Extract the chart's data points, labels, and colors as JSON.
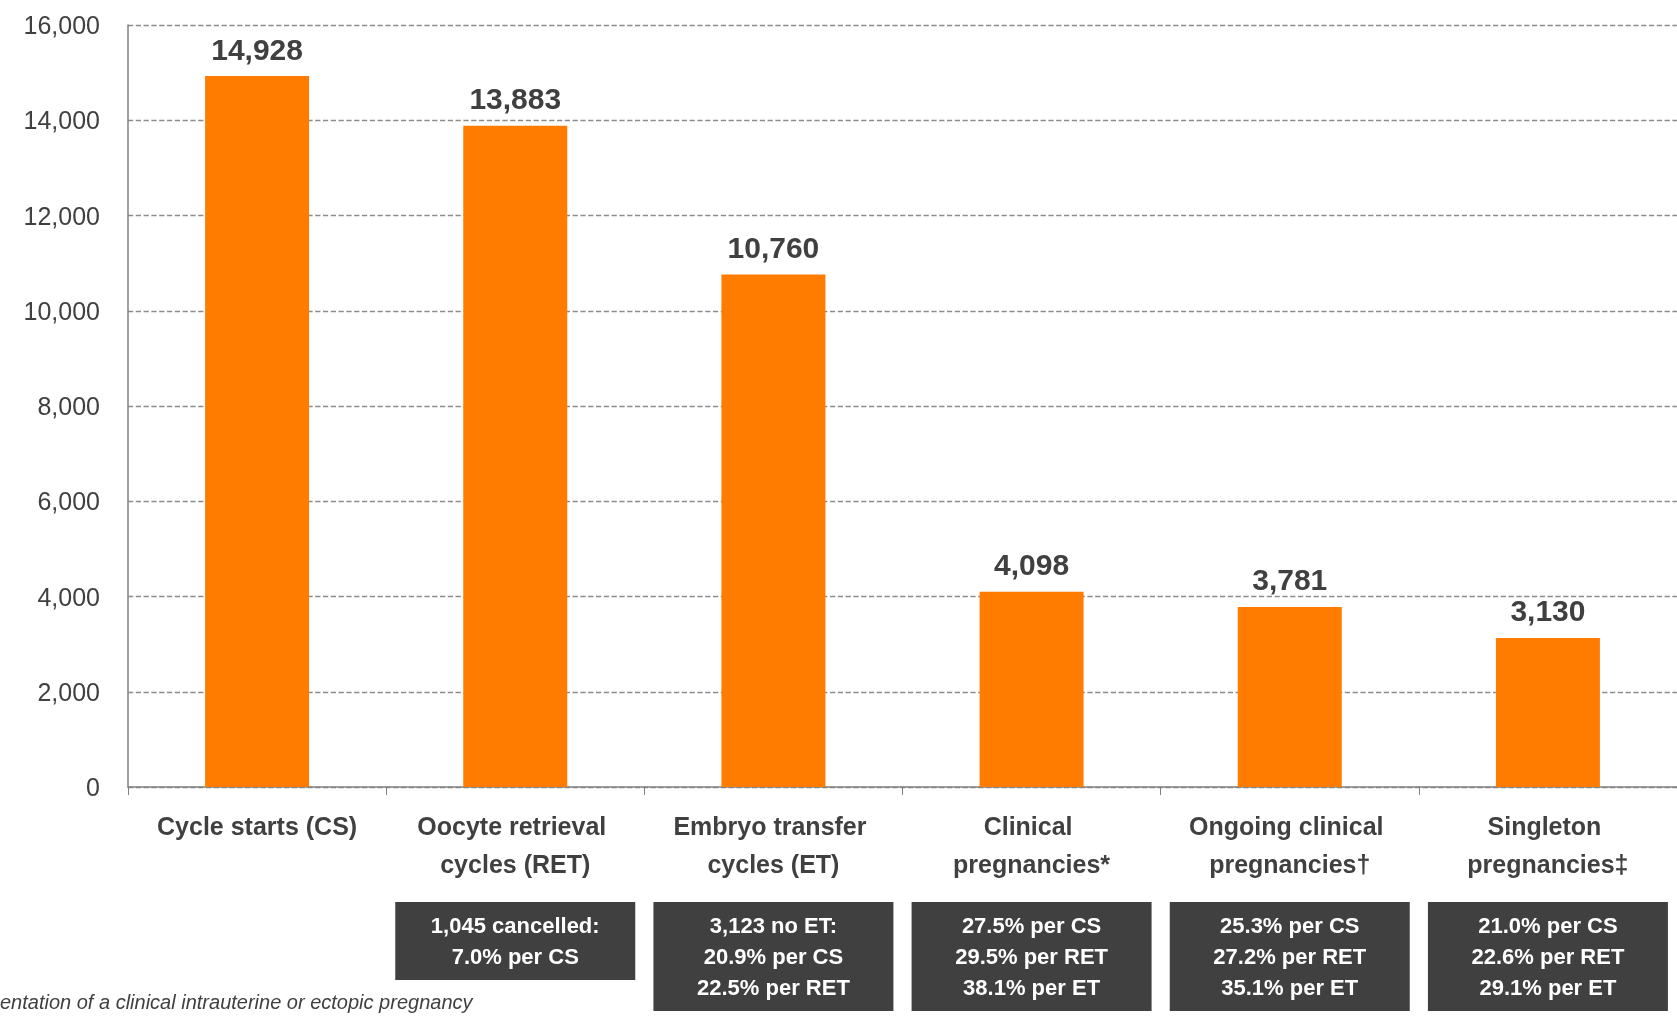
{
  "chart_data": {
    "type": "bar",
    "categories": [
      "Cycle starts (CS)",
      "Oocyte retrieval cycles (RET)",
      "Embryo transfer cycles (ET)",
      "Clinical pregnancies*",
      "Ongoing clinical pregnancies†",
      "Singleton pregnancies‡"
    ],
    "values": [
      14928,
      13883,
      10760,
      4098,
      3781,
      3130
    ],
    "color": "#ff7c00",
    "value_labels": [
      "14,928",
      "13,883",
      "10,760",
      "4,098",
      "3,781",
      "3,130"
    ],
    "ylim": [
      0,
      16000
    ],
    "yticks": [
      {
        "value": 0,
        "label": "0"
      },
      {
        "value": 2000,
        "label": "2,000"
      },
      {
        "value": 4000,
        "label": "4,000"
      },
      {
        "value": 6000,
        "label": "6,000"
      },
      {
        "value": 8000,
        "label": "8,000"
      },
      {
        "value": 10000,
        "label": "10,000"
      },
      {
        "value": 12000,
        "label": "12,000"
      },
      {
        "value": 14000,
        "label": "14,000"
      },
      {
        "value": 16000,
        "label": "16,000"
      }
    ],
    "grid": "y",
    "annotations": [
      "1,045 cancelled:\n7.0% per CS",
      "3,123 no ET:\n20.9% per CS\n22.5% per RET",
      "27.5% per CS\n29.5% per RET\n38.1% per ET",
      "25.3% per CS\n27.2% per RET\n35.1% per ET",
      "21.0% per CS\n22.6% per RET\n29.1% per ET",
      "entation of a clinical intrauterine or ectopic pregnancy"
    ]
  }
}
